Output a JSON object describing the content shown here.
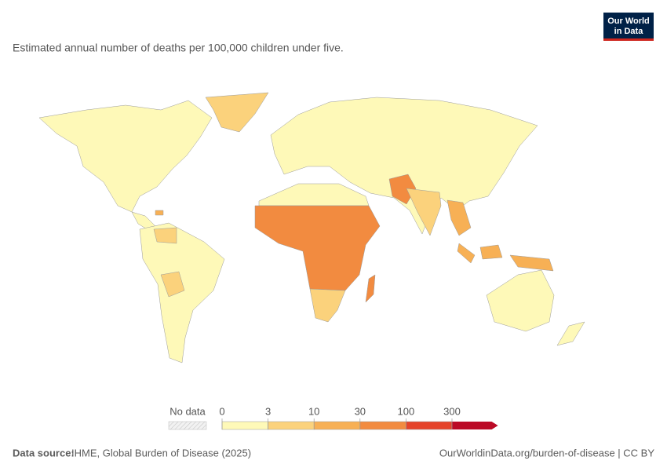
{
  "header": {
    "subtitle": "Estimated annual number of deaths per 100,000 children under five.",
    "logo": [
      "Our World",
      "in Data"
    ]
  },
  "legend": {
    "no_data": "No data",
    "ticks": [
      0,
      3,
      10,
      30,
      100,
      300
    ],
    "colors": [
      "#fef9b8",
      "#fbd27c",
      "#f7b055",
      "#f28b40",
      "#e5432a",
      "#bb0a26"
    ]
  },
  "footer": {
    "source_label": "Data source:",
    "source": "IHME, Global Burden of Disease (2025)",
    "link": "OurWorldinData.org/burden-of-disease | CC BY"
  }
}
